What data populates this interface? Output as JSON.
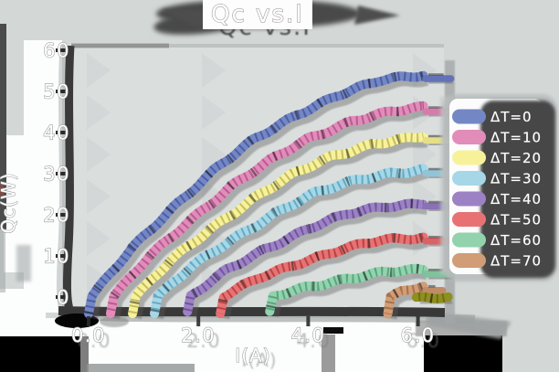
{
  "window": {
    "background": "#d3d8d7",
    "plot_background": "#dadedd"
  },
  "title": "Qc vs.I",
  "chart_data": {
    "type": "line",
    "title": "Qc vs.I",
    "xlabel": "I(A)",
    "ylabel": "Qc(W)",
    "xlim": [
      -0.4,
      6.7
    ],
    "ylim": [
      -5,
      62
    ],
    "grid": false,
    "legend_position": "right",
    "style": "hand-drawn pastel bands with dark hatch marks and ink shadows",
    "x_ticks": {
      "labels": [
        "0.0",
        "2.0",
        "4.0",
        "6.0"
      ],
      "values": [
        0,
        2,
        4,
        6
      ]
    },
    "y_ticks": {
      "labels": [
        "0",
        "10",
        "20",
        "30",
        "40",
        "50",
        "60"
      ],
      "values": [
        0,
        10,
        20,
        30,
        40,
        50,
        60
      ]
    },
    "series": [
      {
        "label": "ΔT=0",
        "color": "#7487c5",
        "hatch_color": "#46579e",
        "cap_color": "#6373b8",
        "in_legend": true,
        "cap_end": 6.6,
        "points": [
          [
            0,
            -4
          ],
          [
            0.06,
            0
          ],
          [
            0.8,
            12
          ],
          [
            1.5,
            21.5
          ],
          [
            2.3,
            31
          ],
          [
            3.0,
            38
          ],
          [
            3.8,
            44.5
          ],
          [
            4.5,
            49
          ],
          [
            5.3,
            52.5
          ],
          [
            6.1,
            54
          ]
        ]
      },
      {
        "label": "ΔT=10",
        "color": "#e28cba",
        "hatch_color": "#b2538b",
        "cap_color": "#d37dab",
        "in_legend": true,
        "cap_end": 6.6,
        "points": [
          [
            0.4,
            -4
          ],
          [
            0.46,
            0
          ],
          [
            1.1,
            9.7
          ],
          [
            1.8,
            18.3
          ],
          [
            2.6,
            27
          ],
          [
            3.3,
            33
          ],
          [
            4.0,
            38.5
          ],
          [
            4.8,
            43
          ],
          [
            5.5,
            45
          ],
          [
            6.1,
            46
          ]
        ]
      },
      {
        "label": "ΔT=20",
        "color": "#f7f29a",
        "hatch_color": "#bdb452",
        "cap_color": "#e6df85",
        "in_legend": true,
        "cap_end": 6.6,
        "points": [
          [
            0.8,
            -4
          ],
          [
            0.86,
            0
          ],
          [
            1.5,
            8.8
          ],
          [
            2.2,
            16.5
          ],
          [
            3.0,
            24
          ],
          [
            3.7,
            29.5
          ],
          [
            4.4,
            34
          ],
          [
            5.2,
            37.5
          ],
          [
            6.1,
            39
          ]
        ]
      },
      {
        "label": "ΔT=30",
        "color": "#a5d7e7",
        "hatch_color": "#58a2bd",
        "cap_color": "#92c3d6",
        "in_legend": true,
        "cap_end": 6.6,
        "points": [
          [
            1.2,
            -4
          ],
          [
            1.26,
            0
          ],
          [
            1.9,
            7.5
          ],
          [
            2.6,
            14
          ],
          [
            3.4,
            20.5
          ],
          [
            4.1,
            25
          ],
          [
            4.9,
            28.5
          ],
          [
            5.5,
            30.3
          ],
          [
            6.1,
            31
          ]
        ]
      },
      {
        "label": "ΔT=40",
        "color": "#9c82c5",
        "hatch_color": "#6a4f96",
        "cap_color": "#8a70b5",
        "in_legend": true,
        "cap_end": 6.6,
        "points": [
          [
            1.8,
            -4
          ],
          [
            1.86,
            0
          ],
          [
            2.5,
            6.3
          ],
          [
            3.2,
            11.7
          ],
          [
            4.0,
            16.7
          ],
          [
            4.7,
            20
          ],
          [
            5.4,
            22
          ],
          [
            6.1,
            23
          ]
        ]
      },
      {
        "label": "ΔT=50",
        "color": "#e87273",
        "hatch_color": "#b03c3d",
        "cap_color": "#d96364",
        "in_legend": true,
        "cap_end": 6.6,
        "points": [
          [
            2.4,
            -4
          ],
          [
            2.46,
            0
          ],
          [
            3.1,
            4.6
          ],
          [
            3.8,
            8.3
          ],
          [
            4.6,
            11.6
          ],
          [
            5.3,
            13.6
          ],
          [
            6.1,
            14.5
          ]
        ]
      },
      {
        "label": "ΔT=60",
        "color": "#92d3ae",
        "hatch_color": "#4f9e76",
        "cap_color": "#7fc29b",
        "in_legend": true,
        "cap_end": 6.6,
        "points": [
          [
            3.3,
            -4
          ],
          [
            3.36,
            0
          ],
          [
            4.0,
            2.6
          ],
          [
            4.7,
            4.6
          ],
          [
            5.4,
            6
          ],
          [
            6.1,
            6.5
          ]
        ]
      },
      {
        "label": "ΔT=70",
        "color": "#d09d77",
        "hatch_color": "#a06a42",
        "cap_color": "#bf8c66",
        "in_legend": true,
        "cap_end": 6.45,
        "points": [
          [
            5.45,
            -4
          ],
          [
            5.5,
            0
          ],
          [
            5.7,
            1.2
          ],
          [
            5.9,
            1.9
          ],
          [
            6.1,
            2.5
          ]
        ]
      },
      {
        "label": "",
        "color": "#8f8f1f",
        "hatch_color": "#6a6a14",
        "cap_color": null,
        "in_legend": false,
        "cap_end": null,
        "points": [
          [
            5.97,
            -0.3
          ],
          [
            6.2,
            -0.2
          ],
          [
            6.55,
            -0.3
          ]
        ]
      }
    ]
  },
  "legend": {
    "items": [
      "ΔT=0",
      "ΔT=10",
      "ΔT=20",
      "ΔT=30",
      "ΔT=40",
      "ΔT=50",
      "ΔT=60",
      "ΔT=70"
    ]
  }
}
